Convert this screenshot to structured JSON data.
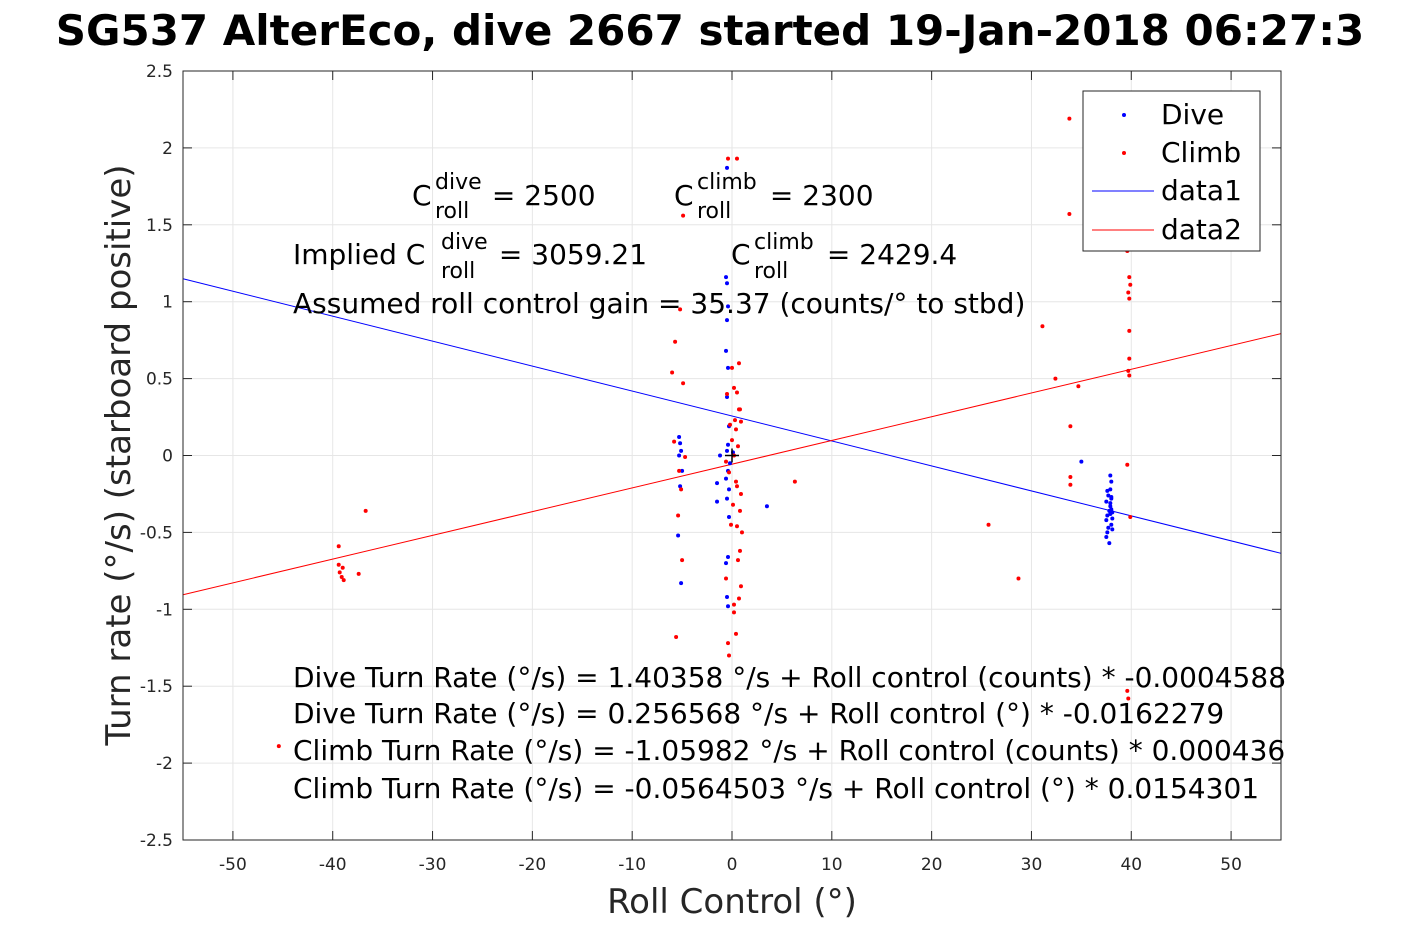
{
  "chart_data": {
    "type": "scatter",
    "title": "SG537 AlterEco, dive 2667 started 19-Jan-2018 06:27:3",
    "xlabel": "Roll Control (°)",
    "ylabel": "Turn rate (°/s) (starboard positive)",
    "xlim": [
      -55,
      55
    ],
    "ylim": [
      -2.5,
      2.5
    ],
    "x_ticks": [
      -50,
      -40,
      -30,
      -20,
      -10,
      0,
      10,
      20,
      30,
      40,
      50
    ],
    "y_ticks": [
      -2.5,
      -2,
      -1.5,
      -1,
      -0.5,
      0,
      0.5,
      1,
      1.5,
      2,
      2.5
    ],
    "grid": true,
    "legend_position": "top-right",
    "series": [
      {
        "name": "Dive",
        "kind": "points",
        "color": "#0000ff",
        "points": [
          [
            -5.3,
            0.12
          ],
          [
            -5.2,
            0.08
          ],
          [
            -5.1,
            0.03
          ],
          [
            -5.3,
            0.0
          ],
          [
            -5.0,
            -0.1
          ],
          [
            -5.2,
            -0.2
          ],
          [
            -5.4,
            -0.52
          ],
          [
            -5.1,
            -0.83
          ],
          [
            -0.6,
            1.16
          ],
          [
            -0.5,
            1.12
          ],
          [
            -0.4,
            0.97
          ],
          [
            -0.5,
            0.88
          ],
          [
            -0.6,
            0.68
          ],
          [
            -0.4,
            0.57
          ],
          [
            -0.5,
            0.38
          ],
          [
            -0.3,
            0.19
          ],
          [
            -0.4,
            0.07
          ],
          [
            -0.5,
            0.03
          ],
          [
            -0.2,
            -0.05
          ],
          [
            -0.4,
            -0.1
          ],
          [
            -0.6,
            -0.15
          ],
          [
            -0.3,
            -0.22
          ],
          [
            -0.5,
            -0.28
          ],
          [
            -0.3,
            -0.4
          ],
          [
            -0.4,
            -0.66
          ],
          [
            -0.6,
            -0.7
          ],
          [
            -0.5,
            -0.92
          ],
          [
            -0.4,
            -0.98
          ],
          [
            -0.5,
            1.87
          ],
          [
            -1.5,
            -0.18
          ],
          [
            -1.5,
            -0.3
          ],
          [
            -1.2,
            0.0
          ],
          [
            0.1,
            0.02
          ],
          [
            3.5,
            -0.33
          ],
          [
            35,
            -0.04
          ],
          [
            37.6,
            -0.23
          ],
          [
            37.7,
            -0.26
          ],
          [
            37.5,
            -0.3
          ],
          [
            37.8,
            -0.36
          ],
          [
            37.6,
            -0.39
          ],
          [
            37.5,
            -0.42
          ],
          [
            37.7,
            -0.47
          ],
          [
            37.6,
            -0.5
          ],
          [
            37.5,
            -0.53
          ],
          [
            37.8,
            -0.57
          ],
          [
            37.9,
            -0.13
          ],
          [
            38.0,
            -0.17
          ],
          [
            37.9,
            -0.22
          ],
          [
            38.0,
            -0.27
          ],
          [
            37.9,
            -0.31
          ],
          [
            38.0,
            -0.35
          ],
          [
            37.9,
            -0.38
          ],
          [
            38.1,
            -0.41
          ],
          [
            38.0,
            -0.45
          ],
          [
            38.1,
            -0.48
          ],
          [
            38.0,
            -0.28
          ],
          [
            37.9,
            -0.33
          ],
          [
            38.1,
            -0.37
          ]
        ]
      },
      {
        "name": "Climb",
        "kind": "points",
        "color": "#ff0000",
        "points": [
          [
            -45.4,
            -1.89
          ],
          [
            -39.4,
            -0.59
          ],
          [
            -39.4,
            -0.71
          ],
          [
            -39.0,
            -0.73
          ],
          [
            -39.3,
            -0.76
          ],
          [
            -39.1,
            -0.79
          ],
          [
            -38.9,
            -0.81
          ],
          [
            -37.4,
            -0.77
          ],
          [
            -36.7,
            -0.36
          ],
          [
            -5.8,
            0.09
          ],
          [
            -5.3,
            -0.1
          ],
          [
            -5.6,
            -1.18
          ],
          [
            -5.4,
            -0.39
          ],
          [
            -5.1,
            -0.22
          ],
          [
            -5.0,
            -0.68
          ],
          [
            -5.7,
            0.74
          ],
          [
            -6.0,
            0.54
          ],
          [
            -5.2,
            0.95
          ],
          [
            -4.9,
            0.47
          ],
          [
            -4.9,
            1.56
          ],
          [
            -4.7,
            -0.01
          ],
          [
            -0.4,
            1.93
          ],
          [
            0.5,
            1.93
          ],
          [
            -0.4,
            -1.22
          ],
          [
            -0.3,
            -1.3
          ],
          [
            -0.5,
            0.4
          ],
          [
            -0.2,
            0.2
          ],
          [
            0.2,
            0.0
          ],
          [
            0.5,
            -0.2
          ],
          [
            0.7,
            0.3
          ],
          [
            1.0,
            -0.5
          ],
          [
            0.8,
            -0.62
          ],
          [
            0.9,
            -0.85
          ],
          [
            0.7,
            -0.93
          ],
          [
            0.0,
            0.57
          ],
          [
            0.7,
            0.6
          ],
          [
            0.2,
            0.44
          ],
          [
            0.5,
            0.41
          ],
          [
            0.8,
            0.3
          ],
          [
            0.3,
            0.23
          ],
          [
            0.9,
            0.22
          ],
          [
            0.4,
            0.17
          ],
          [
            0.0,
            0.1
          ],
          [
            0.6,
            0.06
          ],
          [
            -0.6,
            -0.04
          ],
          [
            -0.3,
            -0.11
          ],
          [
            0.4,
            -0.17
          ],
          [
            0.9,
            -0.25
          ],
          [
            0.1,
            -0.32
          ],
          [
            0.8,
            -0.36
          ],
          [
            -0.1,
            -0.45
          ],
          [
            0.5,
            -0.46
          ],
          [
            0.6,
            -0.68
          ],
          [
            -0.6,
            -0.8
          ],
          [
            0.2,
            -0.97
          ],
          [
            0.2,
            -1.02
          ],
          [
            0.4,
            -1.16
          ],
          [
            6.3,
            -0.17
          ],
          [
            25.7,
            -0.45
          ],
          [
            28.7,
            -0.8
          ],
          [
            31.1,
            0.84
          ],
          [
            32.4,
            0.5
          ],
          [
            33.9,
            0.19
          ],
          [
            33.9,
            -0.14
          ],
          [
            33.9,
            -0.19
          ],
          [
            33.8,
            1.57
          ],
          [
            33.8,
            2.19
          ],
          [
            34.7,
            0.45
          ],
          [
            39.6,
            -0.06
          ],
          [
            39.9,
            -0.4
          ],
          [
            39.8,
            0.52
          ],
          [
            39.7,
            0.55
          ],
          [
            39.8,
            0.63
          ],
          [
            39.8,
            0.81
          ],
          [
            39.8,
            1.02
          ],
          [
            39.7,
            1.06
          ],
          [
            39.9,
            1.11
          ],
          [
            39.8,
            1.16
          ],
          [
            39.6,
            1.33
          ],
          [
            39.6,
            -1.53
          ],
          [
            39.7,
            -1.58
          ]
        ]
      },
      {
        "name": "data1",
        "kind": "line",
        "color": "#0000ff",
        "intercept": 0.256568,
        "slope": -0.0162279
      },
      {
        "name": "data2",
        "kind": "line",
        "color": "#ff0000",
        "intercept": -0.0564503,
        "slope": 0.0154301
      }
    ],
    "origin_marker": [
      0,
      0
    ],
    "annotations": {
      "c_dive": {
        "base": "C",
        "sup": "dive",
        "sub": "roll",
        "rest": " = 2500"
      },
      "c_climb": {
        "base": "C",
        "sup": "climb",
        "sub": "roll",
        "rest": " = 2300"
      },
      "implied_dive": {
        "prefix": "Implied C",
        "sup": "dive",
        "sub": "roll",
        "rest": " = 3059.21"
      },
      "implied_climb": {
        "base": "C",
        "sup": "climb",
        "sub": "roll",
        "rest": " = 2429.4"
      },
      "gain": "Assumed roll control gain = 35.37 (counts/° to stbd)",
      "eq1": "Dive Turn Rate (°/s) = 1.40358 °/s + Roll control (counts) * -0.0004588",
      "eq2": "Dive Turn Rate (°/s) = 0.256568 °/s + Roll control (°) * -0.0162279",
      "eq3": "Climb Turn Rate (°/s) = -1.05982 °/s + Roll control (counts) * 0.000436",
      "eq4": "Climb Turn Rate (°/s) = -0.0564503 °/s + Roll control (°) * 0.0154301"
    }
  }
}
